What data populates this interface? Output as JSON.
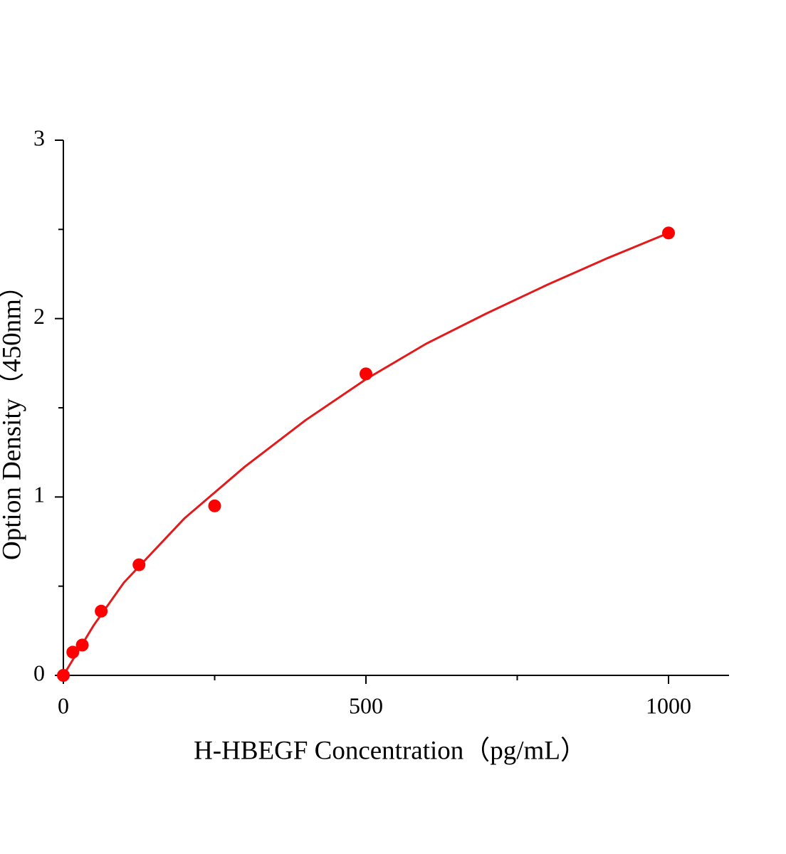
{
  "chart_data": {
    "type": "scatter",
    "x_label": "H-HBEGF Concentration（pg/mL）",
    "y_label": "Option Density（450nm）",
    "xlim": [
      0,
      1100
    ],
    "ylim": [
      0,
      3
    ],
    "xticks": [
      0,
      500,
      1000
    ],
    "yticks": [
      0,
      1,
      2,
      3
    ],
    "xminor": [
      250,
      750
    ],
    "yminor": [
      0.5,
      1.5,
      2.5
    ],
    "grid": false,
    "points": {
      "color": "#ff0000",
      "x": [
        0,
        15.6,
        31.25,
        62.5,
        125,
        250,
        500,
        1000
      ],
      "values": [
        0.0,
        0.13,
        0.17,
        0.36,
        0.62,
        0.95,
        1.69,
        2.48
      ]
    },
    "fit": {
      "color": "#e31a1c",
      "x": [
        0,
        50,
        100,
        200,
        300,
        400,
        500,
        600,
        700,
        800,
        900,
        1000
      ],
      "values": [
        0,
        0.28,
        0.52,
        0.88,
        1.17,
        1.43,
        1.66,
        1.86,
        2.03,
        2.19,
        2.34,
        2.48
      ]
    }
  }
}
